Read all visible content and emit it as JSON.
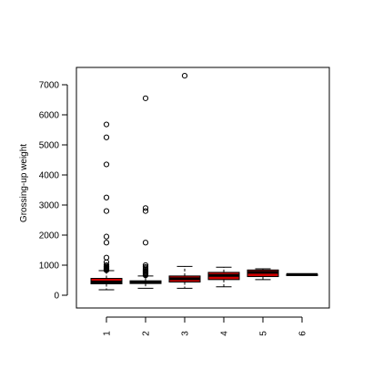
{
  "chart_data": {
    "type": "boxplot",
    "ylabel": "Grossing-up weight",
    "xlabel": "",
    "ylim": [
      0,
      7300
    ],
    "y_ticks": [
      0,
      1000,
      2000,
      3000,
      4000,
      5000,
      6000,
      7000
    ],
    "y_tick_labels": [
      "0",
      "1000",
      "2000",
      "3000",
      "4000",
      "5000",
      "6000",
      "7000"
    ],
    "categories": [
      "1",
      "2",
      "3",
      "4",
      "5",
      "6"
    ],
    "box_color": "#d00000",
    "boxes": [
      {
        "label": "1",
        "whisker_low": 180,
        "q1": 380,
        "median": 440,
        "q3": 560,
        "whisker_high": 820,
        "outliers": [
          5680,
          5250,
          4350,
          3250,
          2800,
          1950,
          1750,
          1250,
          1100,
          1000,
          960,
          940,
          920,
          900,
          880,
          860,
          840,
          830
        ]
      },
      {
        "label": "2",
        "whisker_low": 230,
        "q1": 390,
        "median": 430,
        "q3": 480,
        "whisker_high": 640,
        "outliers": [
          6550,
          2900,
          2800,
          1750,
          1000,
          940,
          900,
          860,
          820,
          790,
          760,
          730,
          700,
          680,
          660
        ]
      },
      {
        "label": "3",
        "whisker_low": 230,
        "q1": 440,
        "median": 550,
        "q3": 640,
        "whisker_high": 960,
        "outliers": [
          7300
        ]
      },
      {
        "label": "4",
        "whisker_low": 280,
        "q1": 520,
        "median": 660,
        "q3": 760,
        "whisker_high": 930,
        "outliers": []
      },
      {
        "label": "5",
        "whisker_low": 520,
        "q1": 620,
        "median": 760,
        "q3": 840,
        "whisker_high": 880,
        "outliers": []
      },
      {
        "label": "6",
        "whisker_low": 680,
        "q1": 680,
        "median": 690,
        "q3": 700,
        "whisker_high": 700,
        "outliers": []
      }
    ]
  }
}
